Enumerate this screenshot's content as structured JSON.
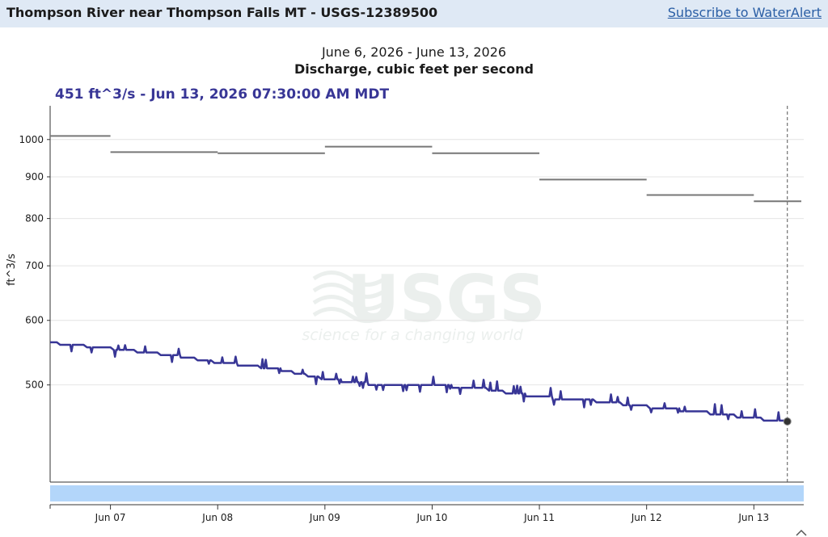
{
  "header": {
    "title": "Thompson River near Thompson Falls MT - USGS-12389500",
    "subscribe_label": "Subscribe to WaterAlert"
  },
  "chart_data": {
    "type": "line",
    "date_range": "June 6, 2026 - June 13, 2026",
    "title": "Discharge, cubic feet per second",
    "tooltip": "451 ft^3/s - Jun 13, 2026 07:30:00 AM MDT",
    "ylabel": "ft^3/s",
    "y_scale": "log",
    "yticks": [
      500,
      600,
      700,
      800,
      900,
      1000
    ],
    "ylim": [
      380,
      1100
    ],
    "xlim": [
      "2026-06-06T10:30",
      "2026-06-13T11:10"
    ],
    "xtick_labels": [
      "Jun 07",
      "Jun 08",
      "Jun 09",
      "Jun 10",
      "Jun 11",
      "Jun 12",
      "Jun 13"
    ],
    "xtick_dates": [
      "2026-06-07",
      "2026-06-08",
      "2026-06-09",
      "2026-06-10",
      "2026-06-11",
      "2026-06-12",
      "2026-06-13"
    ],
    "cursor_time": "2026-06-13T07:30",
    "median_daily": [
      {
        "date": "2026-06-06",
        "value": 1010
      },
      {
        "date": "2026-06-07",
        "value": 965
      },
      {
        "date": "2026-06-08",
        "value": 962
      },
      {
        "date": "2026-06-09",
        "value": 980
      },
      {
        "date": "2026-06-10",
        "value": 962
      },
      {
        "date": "2026-06-11",
        "value": 893
      },
      {
        "date": "2026-06-12",
        "value": 855
      },
      {
        "date": "2026-06-13",
        "value": 840
      }
    ],
    "series": [
      {
        "points": [
          [
            "2026-06-06T10:30",
            563
          ],
          [
            "2026-06-07T00:00",
            554
          ],
          [
            "2026-06-07T12:00",
            545
          ],
          [
            "2026-06-08T00:00",
            533
          ],
          [
            "2026-06-08T12:00",
            524
          ],
          [
            "2026-06-09T00:00",
            508
          ],
          [
            "2026-06-09T12:00",
            500
          ],
          [
            "2026-06-10T00:00",
            500
          ],
          [
            "2026-06-10T12:00",
            494
          ],
          [
            "2026-06-11T00:00",
            483
          ],
          [
            "2026-06-11T12:00",
            478
          ],
          [
            "2026-06-12T00:00",
            470
          ],
          [
            "2026-06-12T12:00",
            463
          ],
          [
            "2026-06-13T00:00",
            455
          ],
          [
            "2026-06-13T07:30",
            451
          ]
        ]
      }
    ],
    "colors": {
      "series": "#383696",
      "median": "#777777",
      "brush": "#b3d6fa",
      "grid": "#e4e4e4"
    },
    "watermark": {
      "name": "USGS",
      "tagline": "science for a changing world"
    }
  }
}
